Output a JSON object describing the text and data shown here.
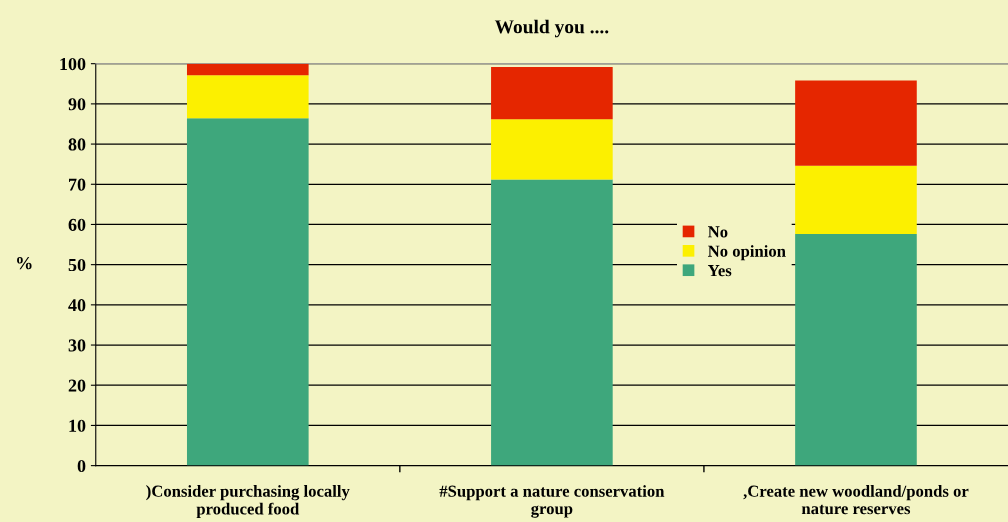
{
  "chart_data": {
    "type": "bar",
    "title": "Would you ....",
    "ylabel": "%",
    "categories": [
      ")Consider purchasing locally\nproduced food",
      "#Support a nature conservation\ngroup",
      ",Create new woodland/ponds or\nnature reserves"
    ],
    "stacked": true,
    "series": [
      {
        "name": "Yes",
        "color": "#3ea77c",
        "values": [
          86.4,
          71.2,
          57.6
        ]
      },
      {
        "name": "No opinion",
        "color": "#fcf000",
        "values": [
          10.7,
          15.0,
          17.0
        ]
      },
      {
        "name": "No",
        "color": "#e52600",
        "values": [
          2.9,
          13.0,
          21.2
        ]
      }
    ],
    "ylim": [
      0,
      100
    ],
    "yticks": [
      0,
      10,
      20,
      30,
      40,
      50,
      60,
      70,
      80,
      90,
      100
    ],
    "grid": "y",
    "legend": "center"
  }
}
